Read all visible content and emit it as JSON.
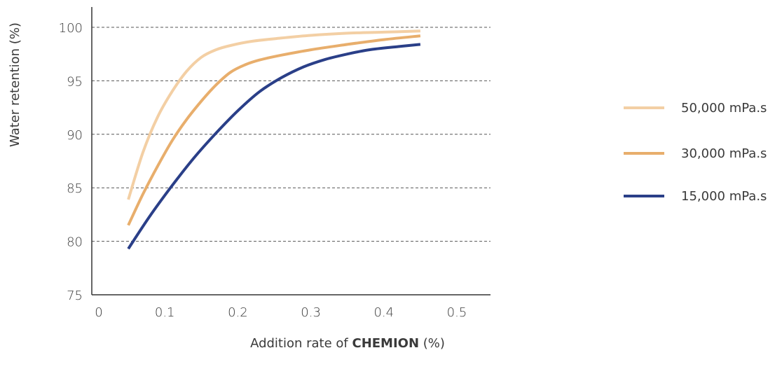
{
  "chart_data": {
    "type": "line",
    "xlabel": {
      "prefix": "Addition rate of ",
      "bold": "CHEMION",
      "suffix": " (%)"
    },
    "ylabel": "Water retention (%)",
    "xlim": [
      0,
      0.53
    ],
    "ylim": [
      75,
      102
    ],
    "x_ticks": [
      "0",
      "0.1",
      "0.2",
      "0.3",
      "0.4",
      "0.5"
    ],
    "x_tick_values": [
      0,
      0.1,
      0.2,
      0.3,
      0.4,
      0.5
    ],
    "y_ticks": [
      "75",
      "80",
      "85",
      "90",
      "95",
      "100"
    ],
    "y_tick_values": [
      75,
      80,
      85,
      90,
      95,
      100
    ],
    "grid": "horizontal-dashed",
    "legend_position": "right",
    "series": [
      {
        "name": "50,000 mPa.s",
        "color": "#f3cfa4",
        "x": [
          0.05,
          0.07,
          0.09,
          0.11,
          0.13,
          0.15,
          0.17,
          0.19,
          0.22,
          0.26,
          0.3,
          0.35,
          0.4,
          0.45
        ],
        "y": [
          83.9,
          88.3,
          91.6,
          94.0,
          95.9,
          97.2,
          97.9,
          98.3,
          98.7,
          99.0,
          99.25,
          99.45,
          99.55,
          99.65
        ]
      },
      {
        "name": "30,000 mPa.s",
        "color": "#e8ae6c",
        "x": [
          0.05,
          0.07,
          0.09,
          0.11,
          0.13,
          0.15,
          0.17,
          0.19,
          0.21,
          0.23,
          0.26,
          0.3,
          0.35,
          0.4,
          0.45
        ],
        "y": [
          81.5,
          84.4,
          87.0,
          89.4,
          91.4,
          93.1,
          94.6,
          95.8,
          96.5,
          96.95,
          97.4,
          97.9,
          98.4,
          98.85,
          99.2
        ]
      },
      {
        "name": "15,000 mPa.s",
        "color": "#2a3f88",
        "x": [
          0.05,
          0.08,
          0.11,
          0.14,
          0.17,
          0.2,
          0.23,
          0.26,
          0.29,
          0.32,
          0.35,
          0.38,
          0.42,
          0.45
        ],
        "y": [
          79.3,
          82.4,
          85.2,
          87.8,
          90.1,
          92.2,
          94.0,
          95.3,
          96.3,
          97.0,
          97.5,
          97.9,
          98.2,
          98.4
        ]
      }
    ]
  }
}
